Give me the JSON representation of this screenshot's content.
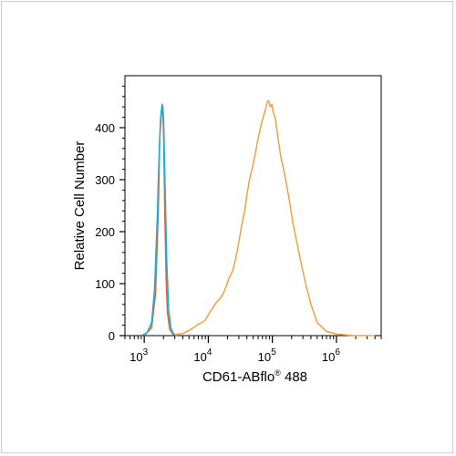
{
  "chart_data": {
    "type": "line",
    "xlabel": "CD61-ABflo",
    "xlabel_sup": "®",
    "xlabel_suffix": " 488",
    "ylabel": "Relative Cell Number",
    "x_scale": "log",
    "xlim": [
      500,
      5000000
    ],
    "ylim": [
      0,
      500
    ],
    "grid": false,
    "y_ticks": [
      0,
      100,
      200,
      300,
      400
    ],
    "x_ticks": [
      {
        "base": "10",
        "exp": "3",
        "value": 1000
      },
      {
        "base": "10",
        "exp": "4",
        "value": 10000
      },
      {
        "base": "10",
        "exp": "5",
        "value": 100000
      },
      {
        "base": "10",
        "exp": "6",
        "value": 1000000
      }
    ],
    "series": [
      {
        "color": "#e0612d",
        "x": [
          1000,
          1300,
          1500,
          1650,
          1750,
          1850,
          1900,
          1950,
          2000,
          2050,
          2100,
          2200,
          2300,
          2500,
          2800,
          3200
        ],
        "y": [
          0,
          15,
          80,
          230,
          380,
          430,
          435,
          425,
          395,
          320,
          230,
          110,
          45,
          12,
          3,
          0
        ]
      },
      {
        "color": "#1ab0d8",
        "x": [
          900,
          1100,
          1300,
          1450,
          1600,
          1700,
          1800,
          1900,
          1950,
          2000,
          2050,
          2150,
          2250,
          2400,
          2600,
          2900,
          3300
        ],
        "y": [
          0,
          5,
          25,
          90,
          230,
          340,
          420,
          445,
          440,
          420,
          370,
          250,
          140,
          50,
          15,
          3,
          0
        ]
      },
      {
        "color": "#f3a043",
        "x": [
          3000,
          4000,
          5000,
          6000,
          7000,
          8000,
          9000,
          10000,
          11000,
          12000,
          13000,
          15000,
          17000,
          19000,
          21000,
          24000,
          27000,
          30000,
          33000,
          37000,
          40000,
          44000,
          48000,
          52000,
          56000,
          60000,
          64000,
          68000,
          72000,
          76000,
          80000,
          84000,
          88000,
          93000,
          98000,
          103000,
          110000,
          118000,
          126000,
          135000,
          150000,
          170000,
          190000,
          210000,
          240000,
          280000,
          330000,
          400000,
          500000,
          700000,
          1000000,
          1500000,
          2000000,
          3000000,
          4000000
        ],
        "y": [
          2,
          4,
          10,
          16,
          22,
          25,
          30,
          40,
          48,
          55,
          62,
          70,
          80,
          95,
          110,
          125,
          150,
          180,
          210,
          240,
          270,
          300,
          320,
          340,
          360,
          380,
          395,
          410,
          420,
          430,
          440,
          450,
          452,
          440,
          445,
          430,
          420,
          395,
          370,
          345,
          320,
          285,
          250,
          215,
          180,
          140,
          100,
          60,
          25,
          8,
          3,
          1,
          0,
          0,
          0
        ]
      }
    ]
  }
}
